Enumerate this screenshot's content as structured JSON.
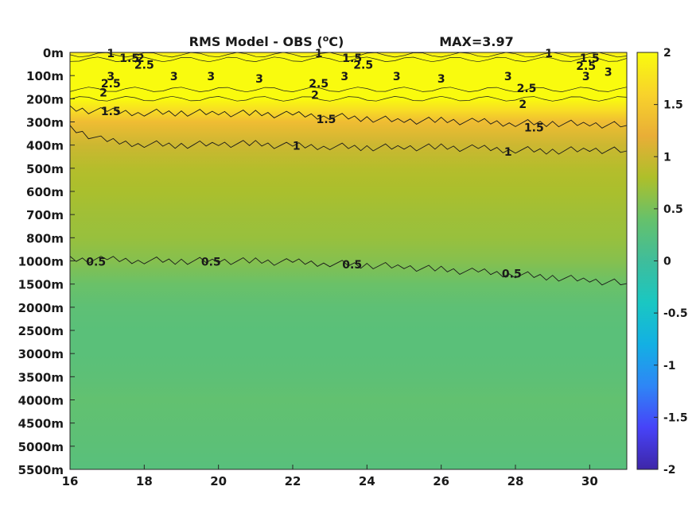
{
  "chart_data": {
    "type": "heatmap",
    "title": "RMS Model - OBS (°C)",
    "title_prefix": "RMS Model - OBS (",
    "title_superscript": "o",
    "title_suffix": "C)",
    "annotation": "MAX=3.97",
    "x_ticks": [
      "16",
      "18",
      "20",
      "22",
      "24",
      "26",
      "28",
      "30"
    ],
    "x_tick_values": [
      16,
      18,
      20,
      22,
      24,
      26,
      28,
      30
    ],
    "xlim": [
      16,
      31
    ],
    "y_ticks": [
      "0m",
      "100m",
      "200m",
      "300m",
      "400m",
      "500m",
      "600m",
      "700m",
      "800m",
      "1000m",
      "1500m",
      "2000m",
      "2500m",
      "3000m",
      "3500m",
      "4000m",
      "4500m",
      "5000m",
      "5500m"
    ],
    "y_tick_depths": [
      0,
      100,
      200,
      300,
      400,
      500,
      600,
      700,
      800,
      1000,
      1500,
      2000,
      2500,
      3000,
      3500,
      4000,
      4500,
      5000,
      5500
    ],
    "y_axis_reversed": true,
    "colorbar": {
      "ticks": [
        "2",
        "1.5",
        "1",
        "0.5",
        "0",
        "-0.5",
        "-1",
        "-1.5",
        "-2"
      ],
      "tick_values": [
        2,
        1.5,
        1,
        0.5,
        0,
        -0.5,
        -1,
        -1.5,
        -2
      ],
      "range": [
        -2,
        2
      ],
      "colormap": "parula",
      "colors": [
        "#3e26a8",
        "#4743f8",
        "#2e86f6",
        "#13b0e3",
        "#1ac7c2",
        "#3fbd9b",
        "#66c16b",
        "#aebf2a",
        "#e9ae37",
        "#f8d32b",
        "#f9fb0e"
      ]
    },
    "depth_profile": {
      "depths": [
        0,
        20,
        50,
        100,
        150,
        200,
        250,
        300,
        400,
        500,
        600,
        700,
        800,
        1000,
        1500,
        2000,
        2500,
        3000,
        3500,
        4000,
        5000,
        5500
      ],
      "rms": [
        1.8,
        2.3,
        2.9,
        3.1,
        2.9,
        2.3,
        1.7,
        1.35,
        1.0,
        0.85,
        0.78,
        0.72,
        0.68,
        0.58,
        0.42,
        0.32,
        0.28,
        0.28,
        0.31,
        0.36,
        0.3,
        0.26
      ]
    },
    "contour_labels": [
      {
        "text": "1",
        "x": 17.1,
        "depth": 0
      },
      {
        "text": "1.5",
        "x": 17.6,
        "depth": 20
      },
      {
        "text": "2",
        "x": 17.9,
        "depth": 20
      },
      {
        "text": "2.5",
        "x": 18.0,
        "depth": 50
      },
      {
        "text": "3",
        "x": 17.1,
        "depth": 100
      },
      {
        "text": "2.5",
        "x": 17.1,
        "depth": 130
      },
      {
        "text": "2",
        "x": 16.9,
        "depth": 170
      },
      {
        "text": "1.5",
        "x": 17.1,
        "depth": 250
      },
      {
        "text": "3",
        "x": 18.8,
        "depth": 100
      },
      {
        "text": "3",
        "x": 19.8,
        "depth": 100
      },
      {
        "text": "3",
        "x": 21.1,
        "depth": 110
      },
      {
        "text": "1",
        "x": 22.7,
        "depth": 0
      },
      {
        "text": "1.5",
        "x": 23.6,
        "depth": 20
      },
      {
        "text": "2.5",
        "x": 23.9,
        "depth": 50
      },
      {
        "text": "2.5",
        "x": 22.7,
        "depth": 130
      },
      {
        "text": "3",
        "x": 23.4,
        "depth": 100
      },
      {
        "text": "2",
        "x": 22.6,
        "depth": 180
      },
      {
        "text": "1.5",
        "x": 22.9,
        "depth": 285
      },
      {
        "text": "1",
        "x": 22.1,
        "depth": 400
      },
      {
        "text": "3",
        "x": 24.8,
        "depth": 100
      },
      {
        "text": "3",
        "x": 26.0,
        "depth": 110
      },
      {
        "text": "3",
        "x": 27.8,
        "depth": 100
      },
      {
        "text": "2.5",
        "x": 28.3,
        "depth": 150
      },
      {
        "text": "2",
        "x": 28.2,
        "depth": 220
      },
      {
        "text": "1.5",
        "x": 28.5,
        "depth": 320
      },
      {
        "text": "1",
        "x": 27.8,
        "depth": 425
      },
      {
        "text": "1",
        "x": 28.9,
        "depth": 0
      },
      {
        "text": "1.5",
        "x": 30.0,
        "depth": 20
      },
      {
        "text": "2.5",
        "x": 29.9,
        "depth": 55
      },
      {
        "text": "3",
        "x": 29.9,
        "depth": 100
      },
      {
        "text": "3",
        "x": 30.5,
        "depth": 80
      },
      {
        "text": "0.5",
        "x": 16.7,
        "depth": 1000
      },
      {
        "text": "0.5",
        "x": 19.8,
        "depth": 1000
      },
      {
        "text": "0.5",
        "x": 23.6,
        "depth": 1060
      },
      {
        "text": "0.5",
        "x": 27.9,
        "depth": 1260
      }
    ],
    "contour_lines": [
      {
        "level": 1,
        "x": [
          16,
          17,
          18,
          19,
          20,
          21,
          22,
          23,
          24,
          25,
          26,
          27,
          28,
          29,
          30,
          31
        ],
        "depth": [
          330,
          385,
          395,
          400,
          395,
          395,
          405,
          405,
          410,
          410,
          410,
          415,
          420,
          425,
          420,
          425
        ]
      },
      {
        "level": 1.5,
        "x": [
          16,
          17,
          18,
          19,
          20,
          21,
          22,
          23,
          24,
          25,
          26,
          27,
          28,
          29,
          30,
          31
        ],
        "depth": [
          245,
          255,
          260,
          260,
          262,
          265,
          270,
          275,
          285,
          295,
          295,
          300,
          305,
          305,
          310,
          315
        ]
      },
      {
        "level": 0.5,
        "x": [
          16,
          17,
          18,
          19,
          20,
          21,
          22,
          23,
          24,
          25,
          26,
          27,
          28,
          29,
          30,
          31
        ],
        "depth": [
          990,
          990,
          995,
          1000,
          1000,
          1010,
          1030,
          1050,
          1090,
          1130,
          1190,
          1240,
          1290,
          1350,
          1420,
          1490
        ]
      }
    ],
    "grid": false
  }
}
